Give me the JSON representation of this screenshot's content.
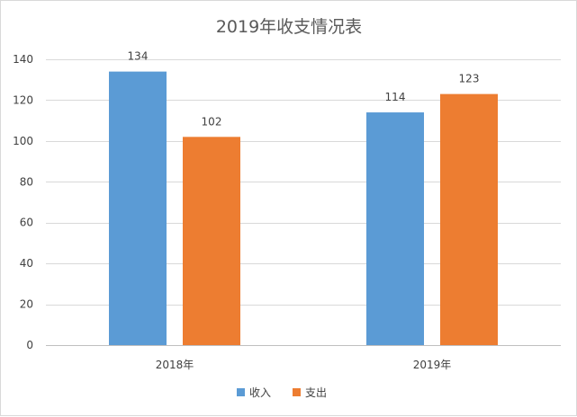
{
  "chart_data": {
    "type": "bar",
    "title": "2019年收支情况表",
    "xlabel": "",
    "ylabel": "",
    "categories": [
      "2018年",
      "2019年"
    ],
    "series": [
      {
        "name": "收入",
        "values": [
          134,
          114
        ],
        "color": "#5b9bd5"
      },
      {
        "name": "支出",
        "values": [
          102,
          123
        ],
        "color": "#ed7d31"
      }
    ],
    "ylim": [
      0,
      140
    ],
    "yticks": [
      0,
      20,
      40,
      60,
      80,
      100,
      120,
      140
    ],
    "grid": true,
    "data_labels": true,
    "legend": "bottom"
  }
}
